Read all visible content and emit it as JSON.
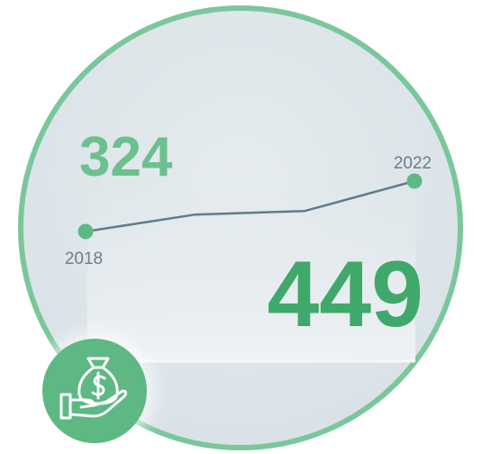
{
  "chart_data": {
    "type": "line",
    "categories": [
      "2018",
      null,
      null,
      "2022"
    ],
    "series": [
      {
        "color": "#5f7d8c",
        "values": [
          324,
          366,
          375,
          449
        ]
      }
    ],
    "marker_color": "#5cb985"
  }
}
